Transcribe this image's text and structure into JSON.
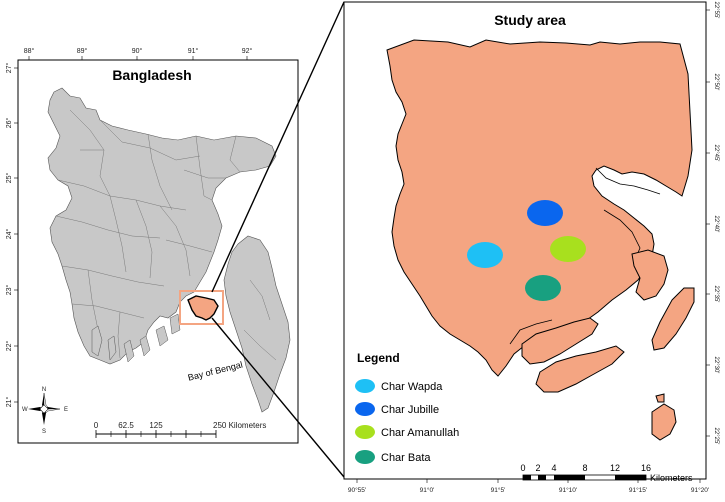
{
  "left_map": {
    "title": "Bangladesh",
    "top_ticks": [
      "88°",
      "89°",
      "90°",
      "91°",
      "92°"
    ],
    "left_ticks": [
      "27°",
      "26°",
      "25°",
      "24°",
      "23°",
      "22°",
      "21°"
    ],
    "sea_label": "Bay of Bengal",
    "compass": {
      "n": "N",
      "s": "S",
      "e": "E",
      "w": "W"
    },
    "scalebar": {
      "labels": [
        "0",
        "62.5",
        "125",
        "250 Kilometers"
      ]
    },
    "colors": {
      "land": "#c8c8c8",
      "highlight": "#f4a582",
      "inset_box": "#f4a582"
    }
  },
  "right_map": {
    "title": "Study area",
    "bottom_ticks": [
      "90°55'",
      "91°0'",
      "91°5'",
      "91°10'",
      "91°15'",
      "91°20'"
    ],
    "right_ticks": [
      "22°55'",
      "22°50'",
      "22°45'",
      "22°40'",
      "22°35'",
      "22°30'",
      "22°25'"
    ],
    "land_color": "#f4a582",
    "legend": {
      "title": "Legend",
      "items": [
        {
          "label": "Char Wapda",
          "color": "#1ec0f5"
        },
        {
          "label": "Char Jubille",
          "color": "#0a66ee"
        },
        {
          "label": "Char Amanullah",
          "color": "#a8e01e"
        },
        {
          "label": "Char Bata",
          "color": "#18a080"
        }
      ]
    },
    "scalebar": {
      "labels": [
        "0",
        "2",
        "4",
        "8",
        "12",
        "16",
        "Kilometers"
      ]
    }
  }
}
